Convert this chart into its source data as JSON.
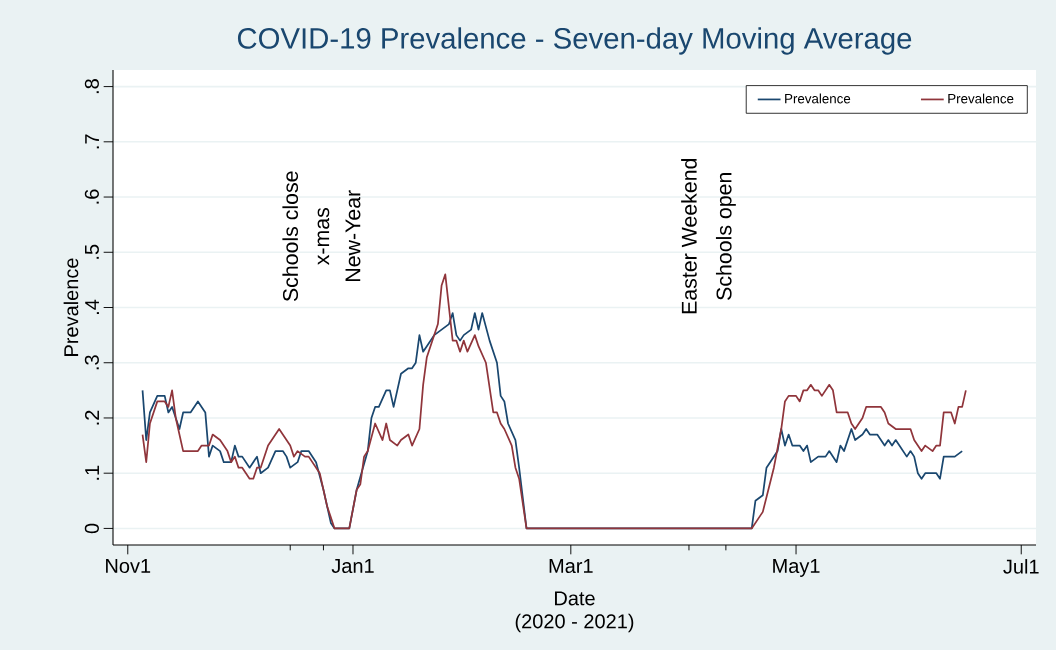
{
  "chart_data": {
    "type": "line",
    "title": "COVID-19 Prevalence - Seven-day Moving Average",
    "xlabel": "Date",
    "ylabel": "Prevalence",
    "annotations": [
      "(2020 - 2021)",
      "Schools close",
      "x-mas",
      "New-Year",
      "Easter Weekend",
      "Schools open"
    ],
    "xlim": [
      "2020-10-28",
      "2021-07-05"
    ],
    "xticks": [
      {
        "value": "2020-11-01",
        "label": "Nov1"
      },
      {
        "value": "2021-01-01",
        "label": "Jan1"
      },
      {
        "value": "2021-03-01",
        "label": "Mar1"
      },
      {
        "value": "2021-05-01",
        "label": "May1"
      },
      {
        "value": "2021-07-01",
        "label": "Jul1"
      },
      {
        "value": "2020-12-15",
        "label": null
      },
      {
        "value": "2020-12-24",
        "label": null
      },
      {
        "value": "2021-04-02",
        "label": null
      },
      {
        "value": "2021-04-12",
        "label": null
      }
    ],
    "ylim": [
      -0.03,
      0.83
    ],
    "yticks": [
      0,
      {
        "value": 0.1,
        "label": ".1"
      },
      {
        "value": 0.2,
        "label": ".2"
      },
      {
        "value": 0.3,
        "label": ".3"
      },
      {
        "value": 0.4,
        "label": ".4"
      },
      {
        "value": 0.5,
        "label": ".5"
      },
      {
        "value": 0.6,
        "label": ".6"
      },
      {
        "value": 0.7,
        "label": ".7"
      },
      {
        "value": 0.8,
        "label": ".8"
      }
    ],
    "grid": "y",
    "legend": "top right",
    "series": [
      {
        "name": "Prevalence",
        "color": "#1a476f",
        "x": [
          "2020-11-05",
          "2020-11-06",
          "2020-11-07",
          "2020-11-09",
          "2020-11-11",
          "2020-11-12",
          "2020-11-13",
          "2020-11-15",
          "2020-11-16",
          "2020-11-18",
          "2020-11-20",
          "2020-11-22",
          "2020-11-23",
          "2020-11-24",
          "2020-11-26",
          "2020-11-27",
          "2020-11-29",
          "2020-11-30",
          "2020-12-01",
          "2020-12-02",
          "2020-12-04",
          "2020-12-06",
          "2020-12-07",
          "2020-12-09",
          "2020-12-11",
          "2020-12-13",
          "2020-12-14",
          "2020-12-15",
          "2020-12-17",
          "2020-12-18",
          "2020-12-20",
          "2020-12-22",
          "2020-12-24",
          "2020-12-26",
          "2020-12-27",
          "2020-12-31",
          "2021-01-02",
          "2021-01-05",
          "2021-01-06",
          "2021-01-07",
          "2021-01-08",
          "2021-01-10",
          "2021-01-11",
          "2021-01-12",
          "2021-01-14",
          "2021-01-16",
          "2021-01-17",
          "2021-01-18",
          "2021-01-19",
          "2021-01-20",
          "2021-01-21",
          "2021-01-23",
          "2021-01-25",
          "2021-01-27",
          "2021-01-28",
          "2021-01-29",
          "2021-01-30",
          "2021-01-31",
          "2021-02-02",
          "2021-02-03",
          "2021-02-04",
          "2021-02-05",
          "2021-02-07",
          "2021-02-09",
          "2021-02-10",
          "2021-02-11",
          "2021-02-12",
          "2021-02-14",
          "2021-02-15",
          "2021-02-17",
          "2021-04-19",
          "2021-04-20",
          "2021-04-22",
          "2021-04-23",
          "2021-04-24",
          "2021-04-26",
          "2021-04-27",
          "2021-04-28",
          "2021-04-29",
          "2021-04-30",
          "2021-05-02",
          "2021-05-03",
          "2021-05-04",
          "2021-05-05",
          "2021-05-07",
          "2021-05-09",
          "2021-05-10",
          "2021-05-12",
          "2021-05-13",
          "2021-05-14",
          "2021-05-16",
          "2021-05-17",
          "2021-05-19",
          "2021-05-20",
          "2021-05-21",
          "2021-05-22",
          "2021-05-23",
          "2021-05-25",
          "2021-05-26",
          "2021-05-27",
          "2021-05-28",
          "2021-05-29",
          "2021-05-31",
          "2021-06-01",
          "2021-06-02",
          "2021-06-03",
          "2021-06-04",
          "2021-06-05",
          "2021-06-08",
          "2021-06-09",
          "2021-06-10",
          "2021-06-12",
          "2021-06-13",
          "2021-06-15"
        ],
        "values": [
          0.25,
          0.16,
          0.21,
          0.24,
          0.24,
          0.21,
          0.22,
          0.18,
          0.21,
          0.21,
          0.23,
          0.21,
          0.13,
          0.15,
          0.14,
          0.12,
          0.12,
          0.15,
          0.13,
          0.13,
          0.11,
          0.13,
          0.1,
          0.11,
          0.14,
          0.14,
          0.13,
          0.11,
          0.12,
          0.14,
          0.14,
          0.12,
          0.07,
          0.01,
          0,
          0,
          0.07,
          0.14,
          0.2,
          0.22,
          0.22,
          0.25,
          0.25,
          0.22,
          0.28,
          0.29,
          0.29,
          0.3,
          0.35,
          0.32,
          0.33,
          0.35,
          0.36,
          0.37,
          0.39,
          0.35,
          0.34,
          0.35,
          0.36,
          0.39,
          0.36,
          0.39,
          0.34,
          0.3,
          0.24,
          0.23,
          0.19,
          0.16,
          0.11,
          0,
          0,
          0.05,
          0.06,
          0.11,
          0.12,
          0.14,
          0.18,
          0.15,
          0.17,
          0.15,
          0.15,
          0.14,
          0.15,
          0.12,
          0.13,
          0.13,
          0.14,
          0.12,
          0.15,
          0.14,
          0.18,
          0.16,
          0.17,
          0.18,
          0.17,
          0.17,
          0.17,
          0.15,
          0.16,
          0.15,
          0.16,
          0.15,
          0.13,
          0.14,
          0.13,
          0.1,
          0.09,
          0.1,
          0.1,
          0.09,
          0.13,
          0.13,
          0.13,
          0.14
        ]
      },
      {
        "name": "Prevalence",
        "color": "#90353b",
        "x": [
          "2020-11-05",
          "2020-11-06",
          "2020-11-07",
          "2020-11-09",
          "2020-11-11",
          "2020-11-12",
          "2020-11-13",
          "2020-11-14",
          "2020-11-16",
          "2020-11-18",
          "2020-11-19",
          "2020-11-20",
          "2020-11-21",
          "2020-11-23",
          "2020-11-24",
          "2020-11-26",
          "2020-11-28",
          "2020-11-29",
          "2020-11-30",
          "2020-12-01",
          "2020-12-02",
          "2020-12-04",
          "2020-12-05",
          "2020-12-06",
          "2020-12-07",
          "2020-12-09",
          "2020-12-10",
          "2020-12-12",
          "2020-12-13",
          "2020-12-15",
          "2020-12-16",
          "2020-12-17",
          "2020-12-19",
          "2020-12-20",
          "2020-12-23",
          "2020-12-25",
          "2020-12-26",
          "2020-12-27",
          "2020-12-31",
          "2021-01-02",
          "2021-01-03",
          "2021-01-04",
          "2021-01-05",
          "2021-01-07",
          "2021-01-09",
          "2021-01-10",
          "2021-01-11",
          "2021-01-13",
          "2021-01-14",
          "2021-01-16",
          "2021-01-17",
          "2021-01-19",
          "2021-01-20",
          "2021-01-21",
          "2021-01-24",
          "2021-01-25",
          "2021-01-26",
          "2021-01-28",
          "2021-01-29",
          "2021-01-30",
          "2021-01-31",
          "2021-02-01",
          "2021-02-03",
          "2021-02-04",
          "2021-02-06",
          "2021-02-08",
          "2021-02-09",
          "2021-02-10",
          "2021-02-11",
          "2021-02-13",
          "2021-02-14",
          "2021-02-15",
          "2021-02-17",
          "2021-04-19",
          "2021-04-21",
          "2021-04-22",
          "2021-04-25",
          "2021-04-27",
          "2021-04-28",
          "2021-04-29",
          "2021-04-30",
          "2021-05-01",
          "2021-05-02",
          "2021-05-03",
          "2021-05-04",
          "2021-05-05",
          "2021-05-06",
          "2021-05-07",
          "2021-05-08",
          "2021-05-10",
          "2021-05-11",
          "2021-05-12",
          "2021-05-13",
          "2021-05-15",
          "2021-05-16",
          "2021-05-17",
          "2021-05-19",
          "2021-05-20",
          "2021-05-21",
          "2021-05-23",
          "2021-05-24",
          "2021-05-25",
          "2021-05-26",
          "2021-05-28",
          "2021-05-29",
          "2021-05-30",
          "2021-05-31",
          "2021-06-01",
          "2021-06-02",
          "2021-06-04",
          "2021-06-05",
          "2021-06-07",
          "2021-06-08",
          "2021-06-09",
          "2021-06-10",
          "2021-06-12",
          "2021-06-13",
          "2021-06-14",
          "2021-06-15",
          "2021-06-16"
        ],
        "values": [
          0.17,
          0.12,
          0.19,
          0.23,
          0.23,
          0.22,
          0.25,
          0.2,
          0.14,
          0.14,
          0.14,
          0.14,
          0.15,
          0.15,
          0.17,
          0.16,
          0.14,
          0.12,
          0.13,
          0.11,
          0.11,
          0.09,
          0.09,
          0.11,
          0.11,
          0.15,
          0.16,
          0.18,
          0.17,
          0.15,
          0.13,
          0.14,
          0.13,
          0.13,
          0.1,
          0.04,
          0.02,
          0,
          0,
          0.07,
          0.08,
          0.13,
          0.14,
          0.19,
          0.16,
          0.19,
          0.16,
          0.15,
          0.16,
          0.17,
          0.15,
          0.18,
          0.26,
          0.31,
          0.37,
          0.44,
          0.46,
          0.34,
          0.34,
          0.32,
          0.34,
          0.32,
          0.35,
          0.33,
          0.3,
          0.21,
          0.21,
          0.19,
          0.18,
          0.15,
          0.11,
          0.09,
          0,
          0,
          0.02,
          0.03,
          0.11,
          0.18,
          0.23,
          0.24,
          0.24,
          0.24,
          0.23,
          0.25,
          0.25,
          0.26,
          0.25,
          0.25,
          0.24,
          0.26,
          0.25,
          0.21,
          0.21,
          0.21,
          0.19,
          0.18,
          0.2,
          0.22,
          0.22,
          0.22,
          0.22,
          0.21,
          0.19,
          0.18,
          0.18,
          0.18,
          0.18,
          0.18,
          0.16,
          0.14,
          0.15,
          0.14,
          0.15,
          0.15,
          0.21,
          0.21,
          0.19,
          0.22,
          0.22,
          0.25
        ]
      }
    ]
  }
}
